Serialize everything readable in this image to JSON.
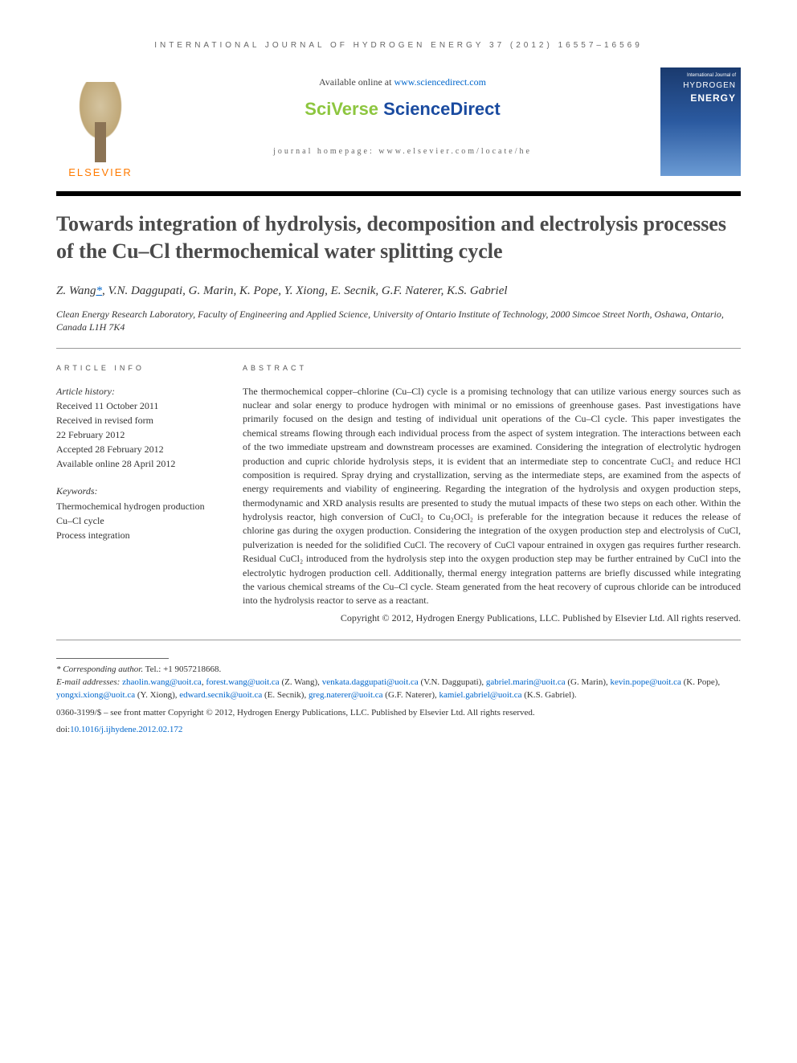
{
  "header": {
    "journal_ref": "INTERNATIONAL JOURNAL OF HYDROGEN ENERGY 37 (2012) 16557–16569",
    "available_prefix": "Available online at ",
    "available_url": "www.sciencedirect.com",
    "brand_sci": "SciVerse ",
    "brand_sd": "ScienceDirect",
    "homepage_line": "journal homepage: www.elsevier.com/locate/he",
    "elsevier_label": "ELSEVIER",
    "cover": {
      "line1": "International Journal of",
      "line2": "HYDROGEN",
      "line3": "ENERGY"
    }
  },
  "article": {
    "title": "Towards integration of hydrolysis, decomposition and electrolysis processes of the Cu–Cl thermochemical water splitting cycle",
    "authors_prefix": "Z. Wang",
    "authors_marker": "*",
    "authors_rest": ", V.N. Daggupati, G. Marin, K. Pope, Y. Xiong, E. Secnik, G.F. Naterer, K.S. Gabriel",
    "affiliation": "Clean Energy Research Laboratory, Faculty of Engineering and Applied Science, University of Ontario Institute of Technology, 2000 Simcoe Street North, Oshawa, Ontario, Canada L1H 7K4"
  },
  "info": {
    "label": "ARTICLE INFO",
    "history_label": "Article history:",
    "received": "Received 11 October 2011",
    "revised1": "Received in revised form",
    "revised2": "22 February 2012",
    "accepted": "Accepted 28 February 2012",
    "online": "Available online 28 April 2012",
    "keywords_label": "Keywords:",
    "kw1": "Thermochemical hydrogen production",
    "kw2": "Cu–Cl cycle",
    "kw3": "Process integration"
  },
  "abstract": {
    "label": "ABSTRACT",
    "text": "The thermochemical copper–chlorine (Cu–Cl) cycle is a promising technology that can utilize various energy sources such as nuclear and solar energy to produce hydrogen with minimal or no emissions of greenhouse gases. Past investigations have primarily focused on the design and testing of individual unit operations of the Cu–Cl cycle. This paper investigates the chemical streams flowing through each individual process from the aspect of system integration. The interactions between each of the two immediate upstream and downstream processes are examined. Considering the integration of electrolytic hydrogen production and cupric chloride hydrolysis steps, it is evident that an intermediate step to concentrate CuCl₂ and reduce HCl composition is required. Spray drying and crystallization, serving as the intermediate steps, are examined from the aspects of energy requirements and viability of engineering. Regarding the integration of the hydrolysis and oxygen production steps, thermodynamic and XRD analysis results are presented to study the mutual impacts of these two steps on each other. Within the hydrolysis reactor, high conversion of CuCl₂ to Cu₂OCl₂ is preferable for the integration because it reduces the release of chlorine gas during the oxygen production. Considering the integration of the oxygen production step and electrolysis of CuCl, pulverization is needed for the solidified CuCl. The recovery of CuCl vapour entrained in oxygen gas requires further research. Residual CuCl₂ introduced from the hydrolysis step into the oxygen production step may be further entrained by CuCl into the electrolytic hydrogen production cell. Additionally, thermal energy integration patterns are briefly discussed while integrating the various chemical streams of the Cu–Cl cycle. Steam generated from the heat recovery of cuprous chloride can be introduced into the hydrolysis reactor to serve as a reactant.",
    "copyright": "Copyright © 2012, Hydrogen Energy Publications, LLC. Published by Elsevier Ltd. All rights reserved."
  },
  "footer": {
    "corr_label": "* Corresponding author.",
    "corr_tel": " Tel.: +1 9057218668.",
    "email_label": "E-mail addresses: ",
    "emails": [
      {
        "addr": "zhaolin.wang@uoit.ca",
        "sep": ", "
      },
      {
        "addr": "forest.wang@uoit.ca",
        "sep": " (Z. Wang), "
      },
      {
        "addr": "venkata.daggupati@uoit.ca",
        "sep": " (V.N. Daggupati), "
      },
      {
        "addr": "gabriel.marin@uoit.ca",
        "sep": " (G. Marin), "
      },
      {
        "addr": "kevin.pope@uoit.ca",
        "sep": " (K. Pope), "
      },
      {
        "addr": "yongxi.xiong@uoit.ca",
        "sep": " (Y. Xiong), "
      },
      {
        "addr": "edward.secnik@uoit.ca",
        "sep": " (E. Secnik), "
      },
      {
        "addr": "greg.naterer@uoit.ca",
        "sep": " (G.F. Naterer), "
      },
      {
        "addr": "kamiel.gabriel@uoit.ca",
        "sep": " (K.S. Gabriel)."
      }
    ],
    "issn_line": "0360-3199/$ – see front matter Copyright © 2012, Hydrogen Energy Publications, LLC. Published by Elsevier Ltd. All rights reserved.",
    "doi_label": "doi:",
    "doi": "10.1016/j.ijhydene.2012.02.172"
  },
  "colors": {
    "link": "#0066cc",
    "orange": "#ff7a00",
    "green": "#8dc63f",
    "blue": "#1a4ba0",
    "text": "#333333"
  }
}
